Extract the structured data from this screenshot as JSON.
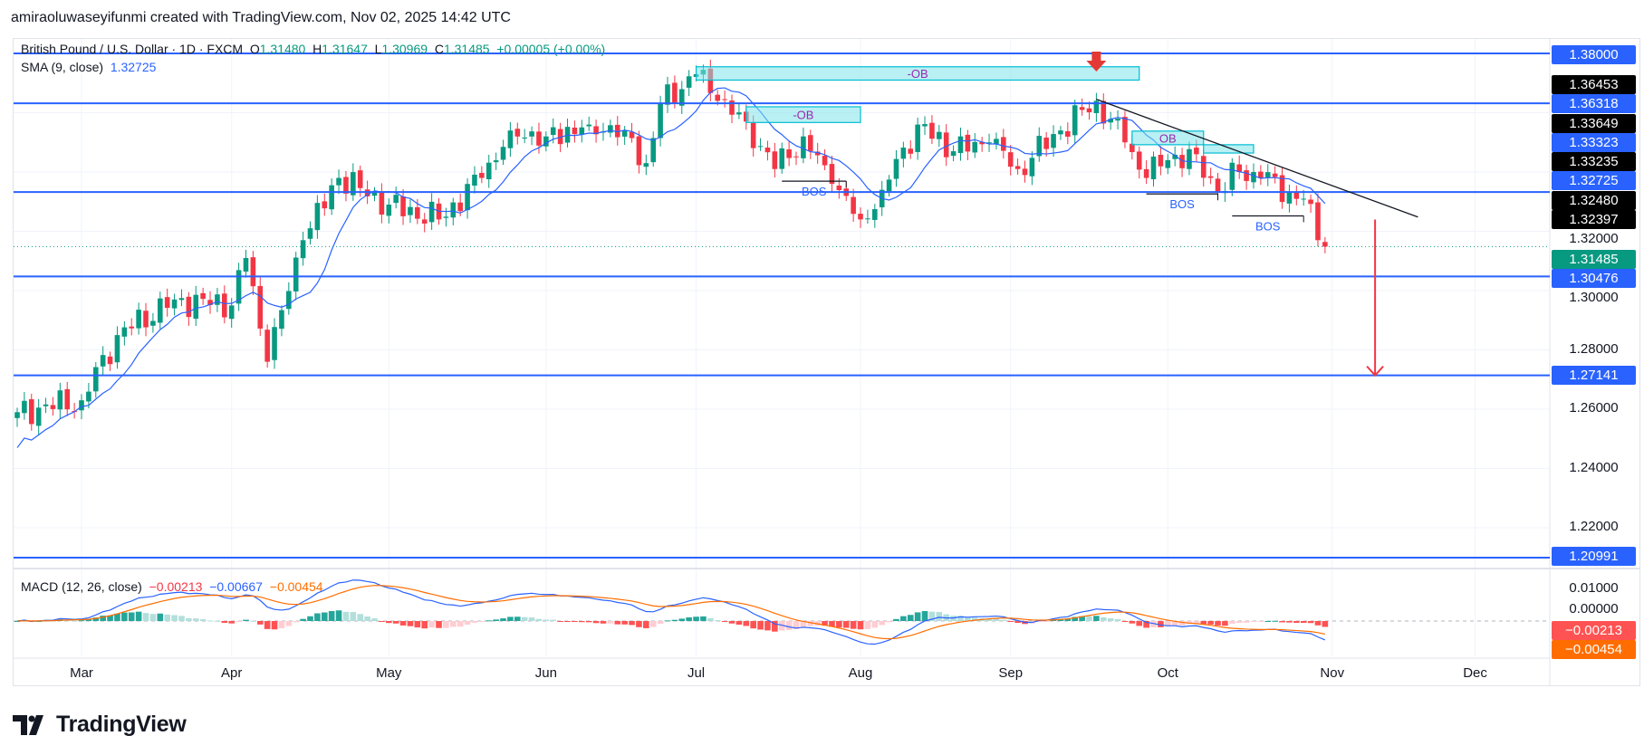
{
  "credit": "amiraoluwaseyifunmi created with TradingView.com, Nov 02, 2025 14:42 UTC",
  "legend": {
    "symbol": "British Pound / U.S. Dollar · 1D · FXCM",
    "o_label": "O",
    "o": "1.31480",
    "h_label": "H",
    "h": "1.31647",
    "l_label": "L",
    "l": "1.30969",
    "c_label": "C",
    "c": "1.31485",
    "change": "+0.00005 (+0.00%)",
    "sma_label": "SMA (9, close)",
    "sma": "1.32725",
    "macd_label": "MACD (12, 26, close)",
    "macd_hist": "−0.00213",
    "macd": "−0.00667",
    "macd_signal": "−0.00454"
  },
  "colors": {
    "up": "#089981",
    "down": "#f23645",
    "level": "#2962ff",
    "sma": "#2962ff",
    "macd": "#2962ff",
    "signal": "#ff6d00",
    "ob": "#7fe3ea",
    "annotation_text": "#9c27b0",
    "arrow": "#f23645"
  },
  "price_axis": {
    "ticks": [
      "1.32000",
      "1.30000",
      "1.28000",
      "1.26000",
      "1.24000",
      "1.22000"
    ],
    "labels": [
      {
        "text": "1.38000",
        "kind": "level"
      },
      {
        "text": "1.36453",
        "kind": "drawing"
      },
      {
        "text": "1.36318",
        "kind": "level"
      },
      {
        "text": "1.33649",
        "kind": "drawing"
      },
      {
        "text": "1.33323",
        "kind": "level"
      },
      {
        "text": "1.33235",
        "kind": "drawing"
      },
      {
        "text": "1.32725",
        "kind": "level"
      },
      {
        "text": "1.32480",
        "kind": "drawing"
      },
      {
        "text": "1.32397",
        "kind": "drawing"
      },
      {
        "text": "1.31485",
        "kind": "last"
      },
      {
        "text": "1.30476",
        "kind": "level"
      },
      {
        "text": "1.27141",
        "kind": "level"
      },
      {
        "text": "1.20991",
        "kind": "level"
      }
    ]
  },
  "macd_axis": {
    "ticks": [
      "0.01000",
      "0.00000"
    ],
    "labels": [
      {
        "text": "−0.00213",
        "kind": "hist"
      },
      {
        "text": "−0.00454",
        "kind": "signal"
      }
    ]
  },
  "date_axis": [
    "Mar",
    "Apr",
    "May",
    "Jun",
    "Jul",
    "Aug",
    "Sep",
    "Oct",
    "Nov",
    "Dec"
  ],
  "logo_text": "TradingView",
  "chart_data": {
    "type": "candlestick",
    "interval": "1D",
    "ylim": [
      1.2099,
      1.38
    ],
    "close_keypoints": [
      [
        "2025-02-18",
        1.259
      ],
      [
        "2025-03-03",
        1.263
      ],
      [
        "2025-03-10",
        1.285
      ],
      [
        "2025-03-20",
        1.297
      ],
      [
        "2025-04-01",
        1.295
      ],
      [
        "2025-04-03",
        1.311
      ],
      [
        "2025-04-08",
        1.276
      ],
      [
        "2025-04-15",
        1.317
      ],
      [
        "2025-04-22",
        1.338
      ],
      [
        "2025-05-01",
        1.329
      ],
      [
        "2025-05-12",
        1.324
      ],
      [
        "2025-05-20",
        1.338
      ],
      [
        "2025-05-26",
        1.354
      ],
      [
        "2025-06-02",
        1.352
      ],
      [
        "2025-06-10",
        1.356
      ],
      [
        "2025-06-17",
        1.354
      ],
      [
        "2025-06-20",
        1.343
      ],
      [
        "2025-06-24",
        1.363
      ],
      [
        "2025-07-01",
        1.373
      ],
      [
        "2025-07-04",
        1.364
      ],
      [
        "2025-07-10",
        1.357
      ],
      [
        "2025-07-16",
        1.341
      ],
      [
        "2025-07-22",
        1.352
      ],
      [
        "2025-07-28",
        1.336
      ],
      [
        "2025-08-01",
        1.324
      ],
      [
        "2025-08-06",
        1.334
      ],
      [
        "2025-08-13",
        1.356
      ],
      [
        "2025-08-20",
        1.347
      ],
      [
        "2025-08-27",
        1.35
      ],
      [
        "2025-09-02",
        1.341
      ],
      [
        "2025-09-10",
        1.354
      ],
      [
        "2025-09-17",
        1.364
      ],
      [
        "2025-09-23",
        1.35
      ],
      [
        "2025-09-26",
        1.338
      ],
      [
        "2025-10-01",
        1.344
      ],
      [
        "2025-10-07",
        1.346
      ],
      [
        "2025-10-10",
        1.333
      ],
      [
        "2025-10-15",
        1.34
      ],
      [
        "2025-10-20",
        1.338
      ],
      [
        "2025-10-24",
        1.333
      ],
      [
        "2025-10-28",
        1.331
      ],
      [
        "2025-10-30",
        1.317
      ],
      [
        "2025-10-31",
        1.31485
      ]
    ],
    "horizontal_levels": [
      1.38,
      1.36318,
      1.33323,
      1.30476,
      1.27141,
      1.20991
    ],
    "order_blocks": [
      {
        "label": "-OB",
        "from": "2025-07-01",
        "to": "2025-09-25",
        "top": 1.3755,
        "bottom": 1.371
      },
      {
        "label": "-OB",
        "from": "2025-07-10",
        "to": "2025-08-01",
        "top": 1.362,
        "bottom": 1.3567
      },
      {
        "label": "OB",
        "from": "2025-09-24",
        "to": "2025-10-08",
        "top": 1.3538,
        "bottom": 1.3492
      },
      {
        "label": "",
        "from": "2025-10-08",
        "to": "2025-10-17",
        "top": 1.3492,
        "bottom": 1.3464
      }
    ],
    "bos": [
      {
        "label": "BOS",
        "from": "2025-07-17",
        "to": "2025-07-30",
        "price": 1.3369
      },
      {
        "label": "BOS",
        "from": "2025-09-26",
        "to": "2025-10-10",
        "price": 1.3326
      },
      {
        "label": "BOS",
        "from": "2025-10-14",
        "to": "2025-10-28",
        "price": 1.3252
      }
    ],
    "trendline": {
      "from": [
        "2025-09-17",
        1.36453
      ],
      "to": [
        "2025-11-19",
        1.3248
      ]
    },
    "target_arrow": {
      "date": "2025-11-11",
      "from": 1.32397,
      "to": 1.27141
    },
    "sell_marker": {
      "date": "2025-09-17",
      "price": 1.3745
    },
    "sma_period": 9,
    "macd_params": [
      12,
      26,
      9
    ]
  }
}
